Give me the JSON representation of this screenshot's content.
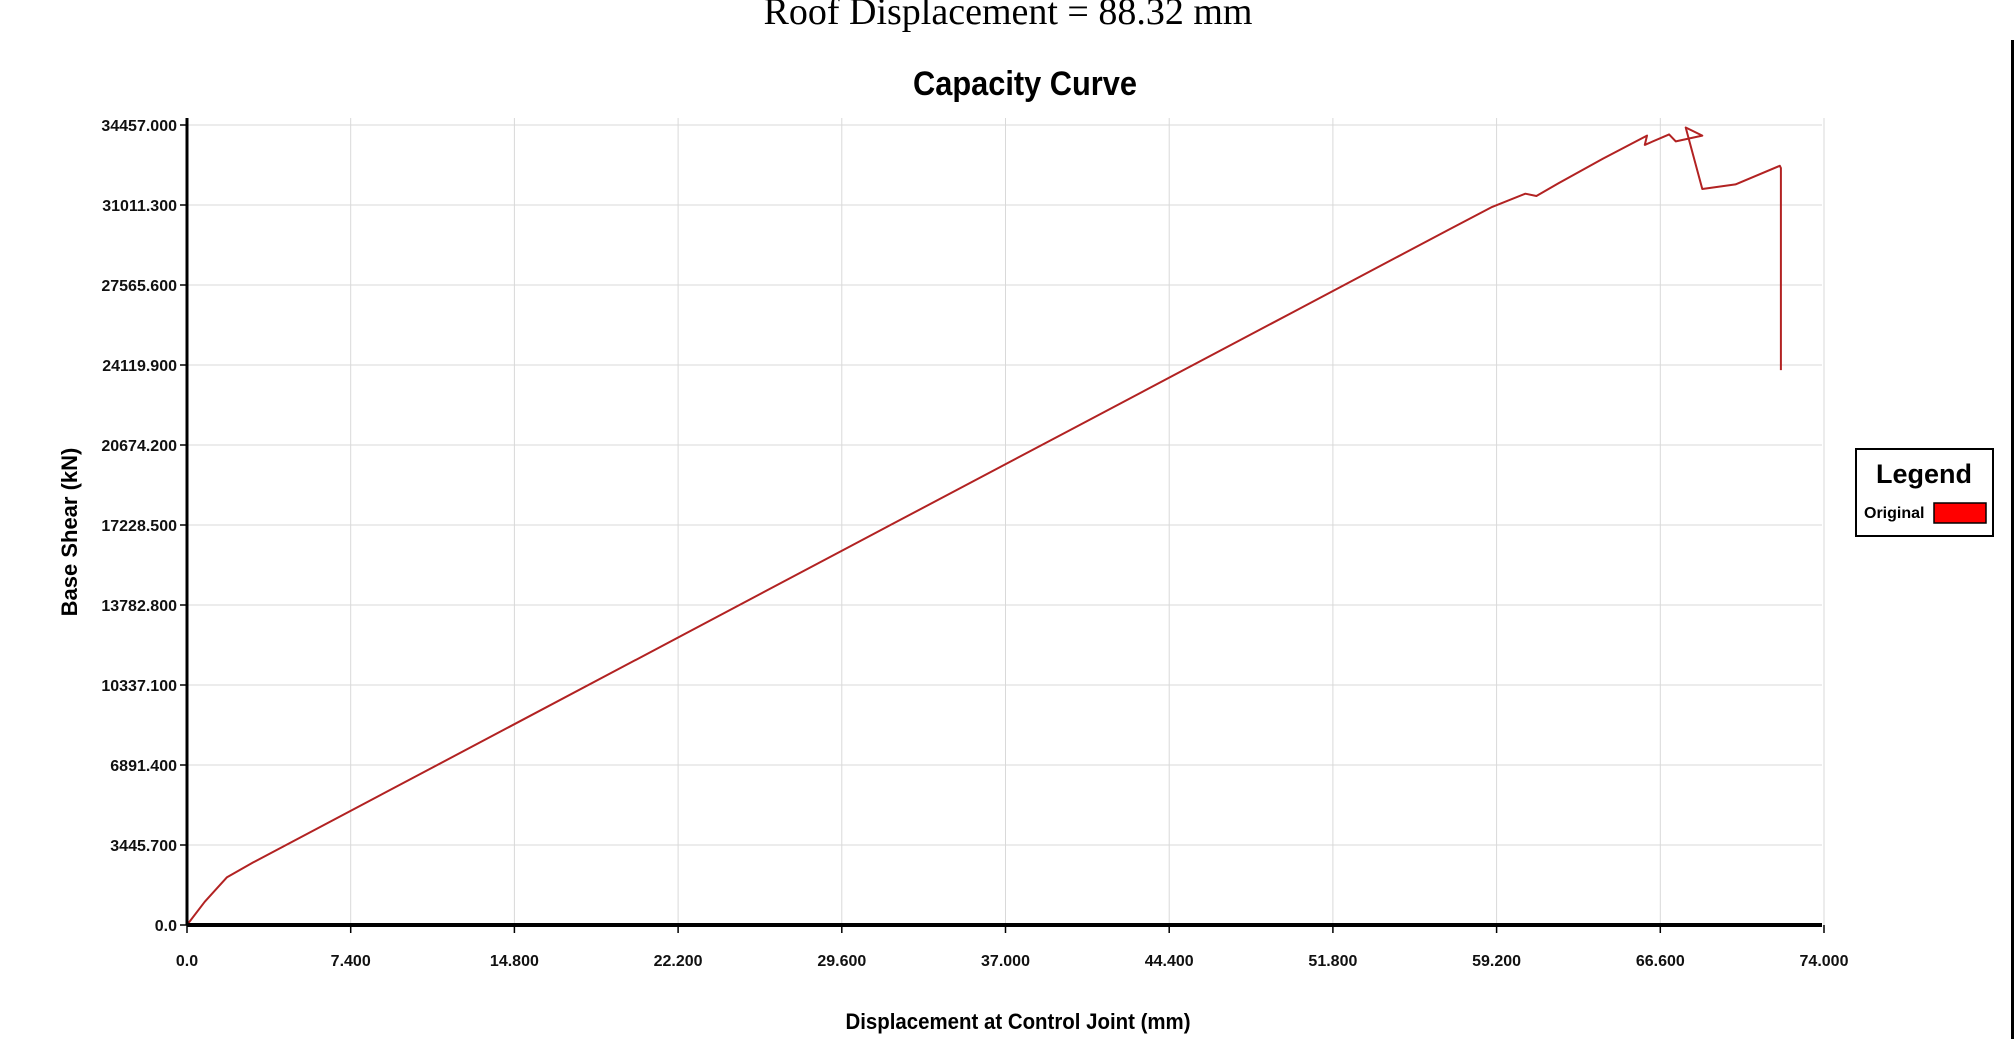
{
  "caption": "Roof Displacement = 88.32 mm",
  "chart_data": {
    "type": "line",
    "title": "Capacity Curve",
    "xlabel": "Displacement at Control Joint (mm)",
    "ylabel": "Base Shear (kN)",
    "xlim": [
      0,
      74.0
    ],
    "ylim": [
      0,
      34457.0
    ],
    "x_ticks": [
      "0.0",
      "7.400",
      "14.800",
      "22.200",
      "29.600",
      "37.000",
      "44.400",
      "51.800",
      "59.200",
      "66.600",
      "74.000"
    ],
    "y_ticks": [
      "0.0",
      "3445.700",
      "6891.400",
      "10337.100",
      "13782.800",
      "17228.500",
      "20674.200",
      "24119.900",
      "27565.600",
      "31011.300",
      "34457.000"
    ],
    "grid": true,
    "legend_position": "right",
    "legend_title": "Legend",
    "series": [
      {
        "name": "Original",
        "color": "#b22222",
        "legend_color": "#ff0000",
        "x": [
          0,
          0.8,
          1.8,
          3.0,
          10.0,
          20.0,
          30.0,
          40.0,
          50.0,
          57.0,
          59.0,
          60.5,
          61.0,
          62.0,
          64.0,
          66.0,
          65.9,
          67.0,
          67.3,
          68.5,
          67.75,
          68.5,
          70.0,
          72.0,
          72.05,
          72.05
        ],
        "y": [
          0,
          1000,
          2050,
          2700,
          6230,
          11270,
          16320,
          21360,
          26400,
          29930,
          30930,
          31500,
          31400,
          31950,
          33000,
          34000,
          33600,
          34050,
          33750,
          34000,
          34350,
          31700,
          31900,
          32700,
          32600,
          23900
        ]
      }
    ]
  }
}
